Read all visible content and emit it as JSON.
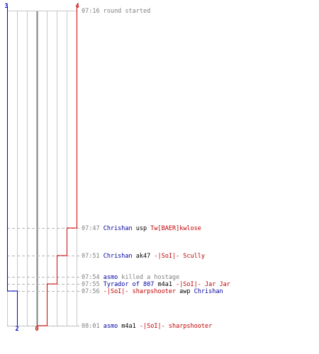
{
  "colors": {
    "blue_team": "#0000cc",
    "red_team": "#cc0000",
    "grid_line": "#c8c8c8",
    "center_line": "#808080",
    "dashed_guide": "#b4b4b4",
    "time_text": "#808080",
    "weapon_text": "#000000"
  },
  "chart": {
    "top_labels": {
      "blue_start": "3",
      "red_start": "4"
    },
    "bottom_labels": {
      "blue_end": "2",
      "red_end": "0"
    },
    "blue_steps": [
      {
        "time": "07:16",
        "count": 3
      },
      {
        "time": "07:56",
        "count": 2
      }
    ],
    "red_steps": [
      {
        "time": "07:16",
        "count": 4
      },
      {
        "time": "07:47",
        "count": 3
      },
      {
        "time": "07:51",
        "count": 2
      },
      {
        "time": "07:55",
        "count": 1
      },
      {
        "time": "08:01",
        "count": 0
      }
    ]
  },
  "events": [
    {
      "time": "07:16",
      "parts": [
        {
          "text": "round started",
          "style": "neutral"
        }
      ]
    },
    {
      "time": "07:47",
      "parts": [
        {
          "text": "Chrishan",
          "style": "blue"
        },
        {
          "text": "usp",
          "style": "weapon"
        },
        {
          "text": "Tw[BAER]kwlose",
          "style": "red"
        }
      ]
    },
    {
      "time": "07:51",
      "parts": [
        {
          "text": "Chrishan",
          "style": "blue"
        },
        {
          "text": "ak47",
          "style": "weapon"
        },
        {
          "text": "-|SoI|- Scully",
          "style": "red"
        }
      ]
    },
    {
      "time": "07:54",
      "parts": [
        {
          "text": "asmo",
          "style": "blue"
        },
        {
          "text": "killed a hostage",
          "style": "neutral"
        }
      ]
    },
    {
      "time": "07:55",
      "parts": [
        {
          "text": "Tyrador of 807",
          "style": "blue"
        },
        {
          "text": "m4a1",
          "style": "weapon"
        },
        {
          "text": "-|SoI|- Jar Jar",
          "style": "red"
        }
      ]
    },
    {
      "time": "07:56",
      "parts": [
        {
          "text": "-|SoI|- sharpshooter",
          "style": "red"
        },
        {
          "text": "awp",
          "style": "weapon"
        },
        {
          "text": "Chrishan",
          "style": "blue"
        }
      ]
    },
    {
      "time": "08:01",
      "parts": [
        {
          "text": "asmo",
          "style": "blue"
        },
        {
          "text": "m4a1",
          "style": "weapon"
        },
        {
          "text": "-|SoI|- sharpshooter",
          "style": "red"
        }
      ]
    }
  ]
}
